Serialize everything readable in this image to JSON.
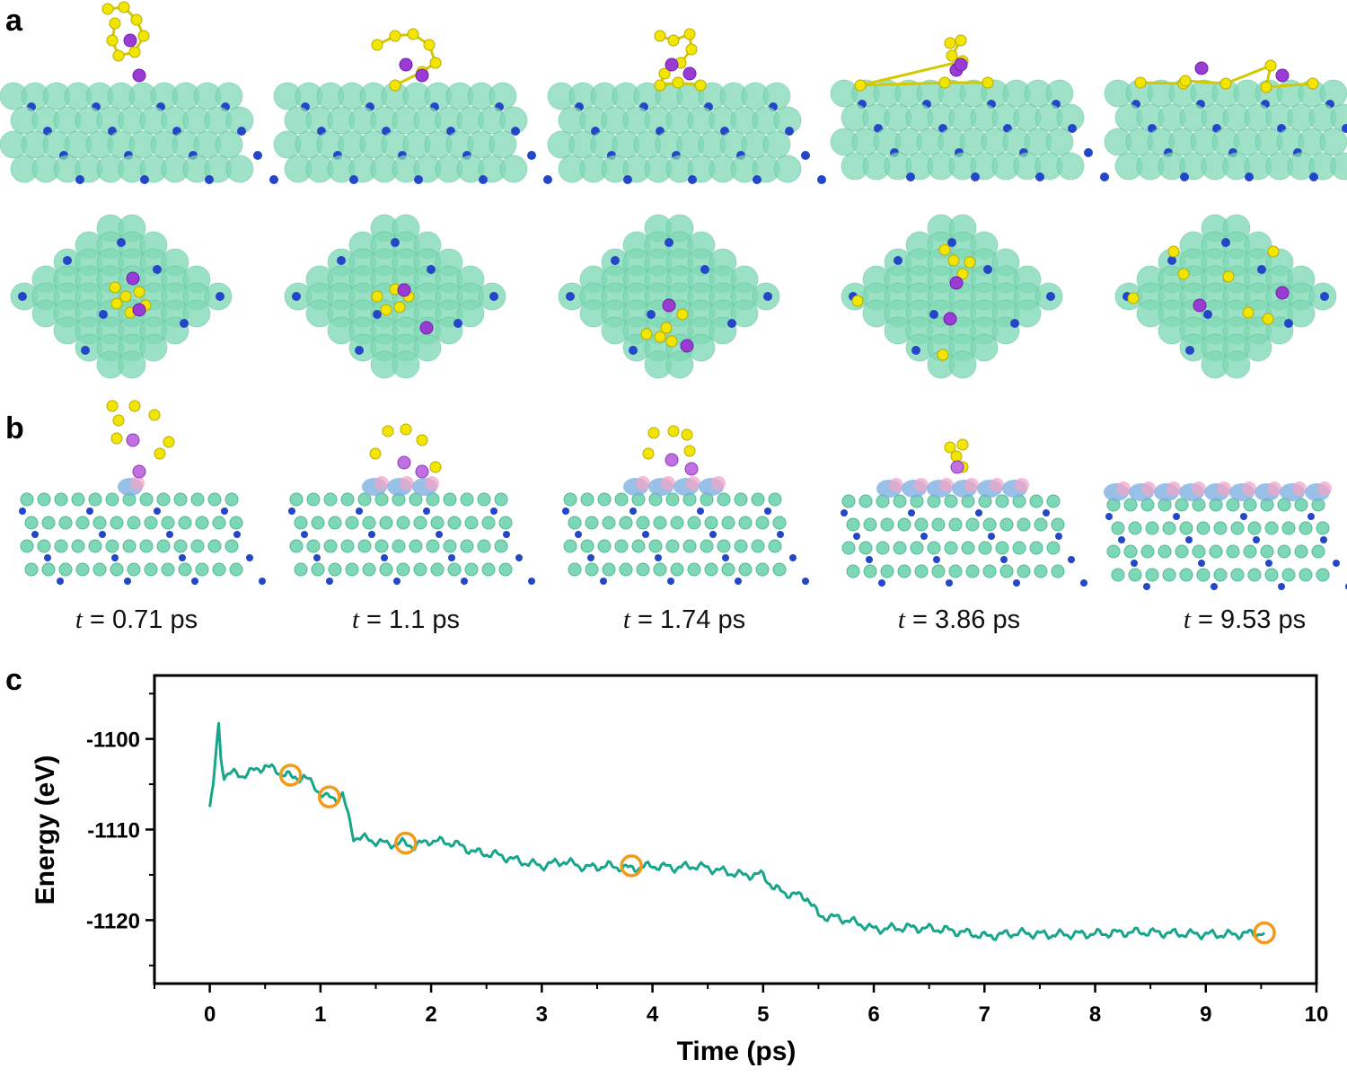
{
  "panels": {
    "a": "a",
    "b": "b",
    "c": "c"
  },
  "snapshots": [
    {
      "t_prefix": "t",
      "value": " = 0.71 ps"
    },
    {
      "t_prefix": "t",
      "value": " = 1.1 ps"
    },
    {
      "t_prefix": "t",
      "value": " = 1.74 ps"
    },
    {
      "t_prefix": "t",
      "value": " = 3.86 ps"
    },
    {
      "t_prefix": "t",
      "value": " = 9.53 ps"
    }
  ],
  "colors": {
    "host": "#7fd8b5",
    "host_edge": "#4fb894",
    "dopant": "#2446c8",
    "sulfur": "#f2e600",
    "iodine": "#9b3bd6",
    "line": "#17a58c",
    "marker": "#f39a1a",
    "charge_pos": "#7fb0e0",
    "charge_neg": "#f0a6c8"
  },
  "chart_data": {
    "type": "line",
    "xlabel": "Time (ps)",
    "ylabel": "Energy (eV)",
    "xlim": [
      -0.5,
      10
    ],
    "ylim": [
      -1127,
      -1093
    ],
    "xticks": [
      0,
      1,
      2,
      3,
      4,
      5,
      6,
      7,
      8,
      9,
      10
    ],
    "yticks": [
      -1100,
      -1110,
      -1120
    ],
    "series": [
      {
        "x": [
          0,
          0.03,
          0.06,
          0.08,
          0.1,
          0.13,
          0.2,
          0.3,
          0.4,
          0.5,
          0.6,
          0.7,
          0.75,
          0.85,
          0.95,
          1.0,
          1.05,
          1.1,
          1.15,
          1.2,
          1.25,
          1.3,
          1.4,
          1.5,
          1.6,
          1.74,
          1.85,
          2.0,
          2.2,
          2.4,
          2.6,
          2.8,
          3.0,
          3.2,
          3.4,
          3.6,
          3.8,
          4.0,
          4.2,
          4.4,
          4.6,
          4.8,
          5.0,
          5.1,
          5.2,
          5.4,
          5.5,
          5.7,
          5.9,
          6.0,
          6.3,
          6.6,
          6.9,
          7.0,
          7.3,
          7.6,
          8.0,
          8.4,
          8.8,
          9.2,
          9.53
        ],
        "y": [
          -1107.5,
          -1105.5,
          -1101.0,
          -1098.5,
          -1102.0,
          -1104.0,
          -1103.8,
          -1104.0,
          -1103.5,
          -1103.0,
          -1103.5,
          -1104.0,
          -1104.3,
          -1104.2,
          -1105.2,
          -1106.0,
          -1106.5,
          -1106.4,
          -1106.6,
          -1106.2,
          -1108.5,
          -1110.8,
          -1111.0,
          -1111.3,
          -1111.6,
          -1111.5,
          -1111.8,
          -1111.2,
          -1111.5,
          -1112.5,
          -1112.8,
          -1113.5,
          -1114.0,
          -1113.5,
          -1114.2,
          -1114.0,
          -1114.3,
          -1114.0,
          -1114.2,
          -1114.0,
          -1114.5,
          -1115.0,
          -1115.0,
          -1116.5,
          -1117.0,
          -1117.5,
          -1119.5,
          -1119.8,
          -1120.5,
          -1121.0,
          -1120.8,
          -1121.0,
          -1121.5,
          -1121.8,
          -1121.4,
          -1121.6,
          -1121.5,
          -1121.3,
          -1121.5,
          -1121.6,
          -1121.4
        ]
      }
    ],
    "markers": {
      "x": [
        0.73,
        1.08,
        1.77,
        3.81,
        9.53
      ],
      "y": [
        -1104.0,
        -1106.4,
        -1111.5,
        -1114.0,
        -1121.4
      ]
    }
  }
}
